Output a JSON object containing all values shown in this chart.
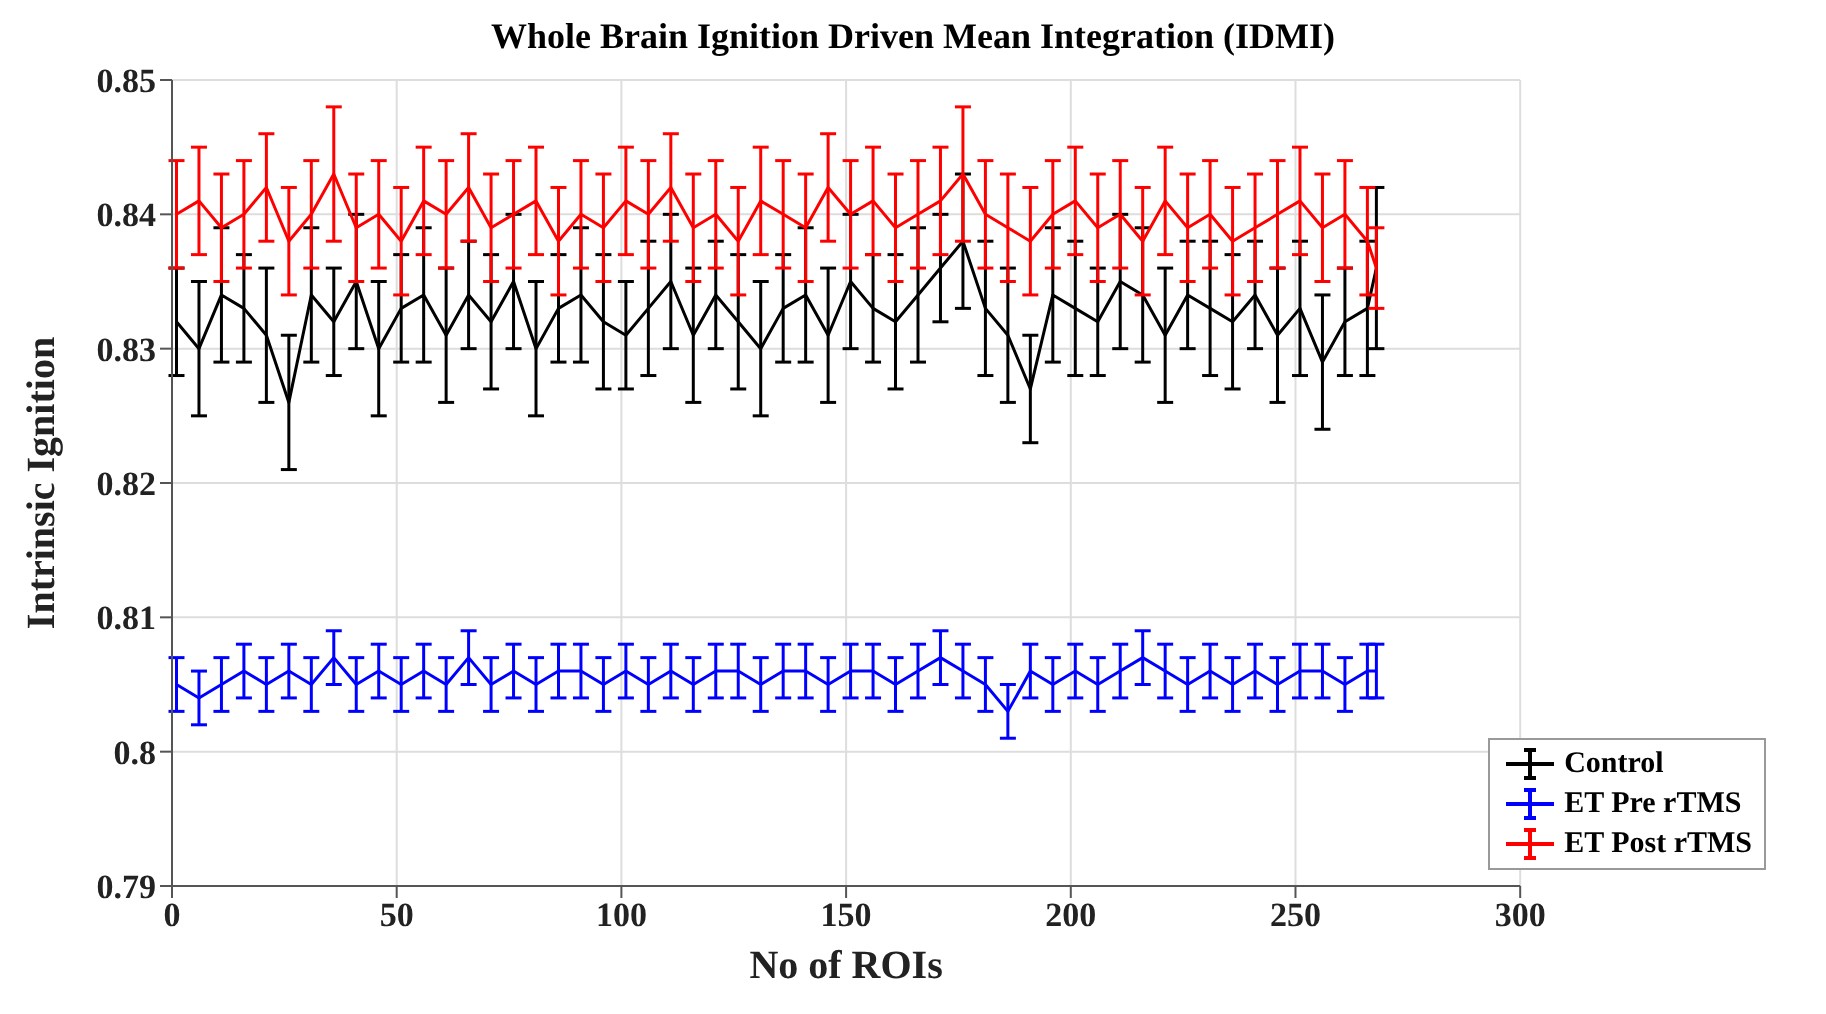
{
  "chart_data": {
    "type": "line",
    "title": "Whole Brain Ignition Driven Mean Integration (IDMI)",
    "xlabel": "No of ROIs",
    "ylabel": "Intrinsic Ignition",
    "x": [
      1,
      6,
      11,
      16,
      21,
      26,
      31,
      36,
      41,
      46,
      51,
      56,
      61,
      66,
      71,
      76,
      81,
      86,
      91,
      96,
      101,
      106,
      111,
      116,
      121,
      126,
      131,
      136,
      141,
      146,
      151,
      156,
      161,
      166,
      171,
      176,
      181,
      186,
      191,
      196,
      201,
      206,
      211,
      216,
      221,
      226,
      231,
      236,
      241,
      246,
      251,
      256,
      261,
      266,
      268
    ],
    "xlim": [
      0,
      300
    ],
    "xticks": [
      0,
      50,
      100,
      150,
      200,
      250,
      300
    ],
    "ylim": [
      0.79,
      0.85
    ],
    "yticks": [
      0.79,
      0.8,
      0.81,
      0.82,
      0.83,
      0.84,
      0.85
    ],
    "grid": true,
    "legend": "bottom right",
    "marker": "none",
    "line_style": "solid",
    "series": [
      {
        "name": "Control",
        "color": "#000000",
        "values": [
          0.832,
          0.83,
          0.834,
          0.833,
          0.831,
          0.826,
          0.834,
          0.832,
          0.835,
          0.83,
          0.833,
          0.834,
          0.831,
          0.834,
          0.832,
          0.835,
          0.83,
          0.833,
          0.834,
          0.832,
          0.831,
          0.833,
          0.835,
          0.831,
          0.834,
          0.832,
          0.83,
          0.833,
          0.834,
          0.831,
          0.835,
          0.833,
          0.832,
          0.834,
          0.836,
          0.838,
          0.833,
          0.831,
          0.827,
          0.834,
          0.833,
          0.832,
          0.835,
          0.834,
          0.831,
          0.834,
          0.833,
          0.832,
          0.834,
          0.831,
          0.833,
          0.829,
          0.832,
          0.833,
          0.836
        ],
        "errors": [
          0.004,
          0.005,
          0.005,
          0.004,
          0.005,
          0.005,
          0.005,
          0.004,
          0.005,
          0.005,
          0.004,
          0.005,
          0.005,
          0.004,
          0.005,
          0.005,
          0.005,
          0.004,
          0.005,
          0.005,
          0.004,
          0.005,
          0.005,
          0.005,
          0.004,
          0.005,
          0.005,
          0.004,
          0.005,
          0.005,
          0.005,
          0.004,
          0.005,
          0.005,
          0.004,
          0.005,
          0.005,
          0.005,
          0.004,
          0.005,
          0.005,
          0.004,
          0.005,
          0.005,
          0.005,
          0.004,
          0.005,
          0.005,
          0.004,
          0.005,
          0.005,
          0.005,
          0.004,
          0.005,
          0.006
        ]
      },
      {
        "name": "ET Pre rTMS",
        "color": "#0000ff",
        "values": [
          0.805,
          0.804,
          0.805,
          0.806,
          0.805,
          0.806,
          0.805,
          0.807,
          0.805,
          0.806,
          0.805,
          0.806,
          0.805,
          0.807,
          0.805,
          0.806,
          0.805,
          0.806,
          0.806,
          0.805,
          0.806,
          0.805,
          0.806,
          0.805,
          0.806,
          0.806,
          0.805,
          0.806,
          0.806,
          0.805,
          0.806,
          0.806,
          0.805,
          0.806,
          0.807,
          0.806,
          0.805,
          0.803,
          0.806,
          0.805,
          0.806,
          0.805,
          0.806,
          0.807,
          0.806,
          0.805,
          0.806,
          0.805,
          0.806,
          0.805,
          0.806,
          0.806,
          0.805,
          0.806,
          0.806
        ],
        "errors": [
          0.002,
          0.002,
          0.002,
          0.002,
          0.002,
          0.002,
          0.002,
          0.002,
          0.002,
          0.002,
          0.002,
          0.002,
          0.002,
          0.002,
          0.002,
          0.002,
          0.002,
          0.002,
          0.002,
          0.002,
          0.002,
          0.002,
          0.002,
          0.002,
          0.002,
          0.002,
          0.002,
          0.002,
          0.002,
          0.002,
          0.002,
          0.002,
          0.002,
          0.002,
          0.002,
          0.002,
          0.002,
          0.002,
          0.002,
          0.002,
          0.002,
          0.002,
          0.002,
          0.002,
          0.002,
          0.002,
          0.002,
          0.002,
          0.002,
          0.002,
          0.002,
          0.002,
          0.002,
          0.002,
          0.002
        ]
      },
      {
        "name": "ET Post rTMS",
        "color": "#ff0000",
        "values": [
          0.84,
          0.841,
          0.839,
          0.84,
          0.842,
          0.838,
          0.84,
          0.843,
          0.839,
          0.84,
          0.838,
          0.841,
          0.84,
          0.842,
          0.839,
          0.84,
          0.841,
          0.838,
          0.84,
          0.839,
          0.841,
          0.84,
          0.842,
          0.839,
          0.84,
          0.838,
          0.841,
          0.84,
          0.839,
          0.842,
          0.84,
          0.841,
          0.839,
          0.84,
          0.841,
          0.843,
          0.84,
          0.839,
          0.838,
          0.84,
          0.841,
          0.839,
          0.84,
          0.838,
          0.841,
          0.839,
          0.84,
          0.838,
          0.839,
          0.84,
          0.841,
          0.839,
          0.84,
          0.838,
          0.836
        ],
        "errors": [
          0.004,
          0.004,
          0.004,
          0.004,
          0.004,
          0.004,
          0.004,
          0.005,
          0.004,
          0.004,
          0.004,
          0.004,
          0.004,
          0.004,
          0.004,
          0.004,
          0.004,
          0.004,
          0.004,
          0.004,
          0.004,
          0.004,
          0.004,
          0.004,
          0.004,
          0.004,
          0.004,
          0.004,
          0.004,
          0.004,
          0.004,
          0.004,
          0.004,
          0.004,
          0.004,
          0.005,
          0.004,
          0.004,
          0.004,
          0.004,
          0.004,
          0.004,
          0.004,
          0.004,
          0.004,
          0.004,
          0.004,
          0.004,
          0.004,
          0.004,
          0.004,
          0.004,
          0.004,
          0.004,
          0.003
        ]
      }
    ]
  }
}
